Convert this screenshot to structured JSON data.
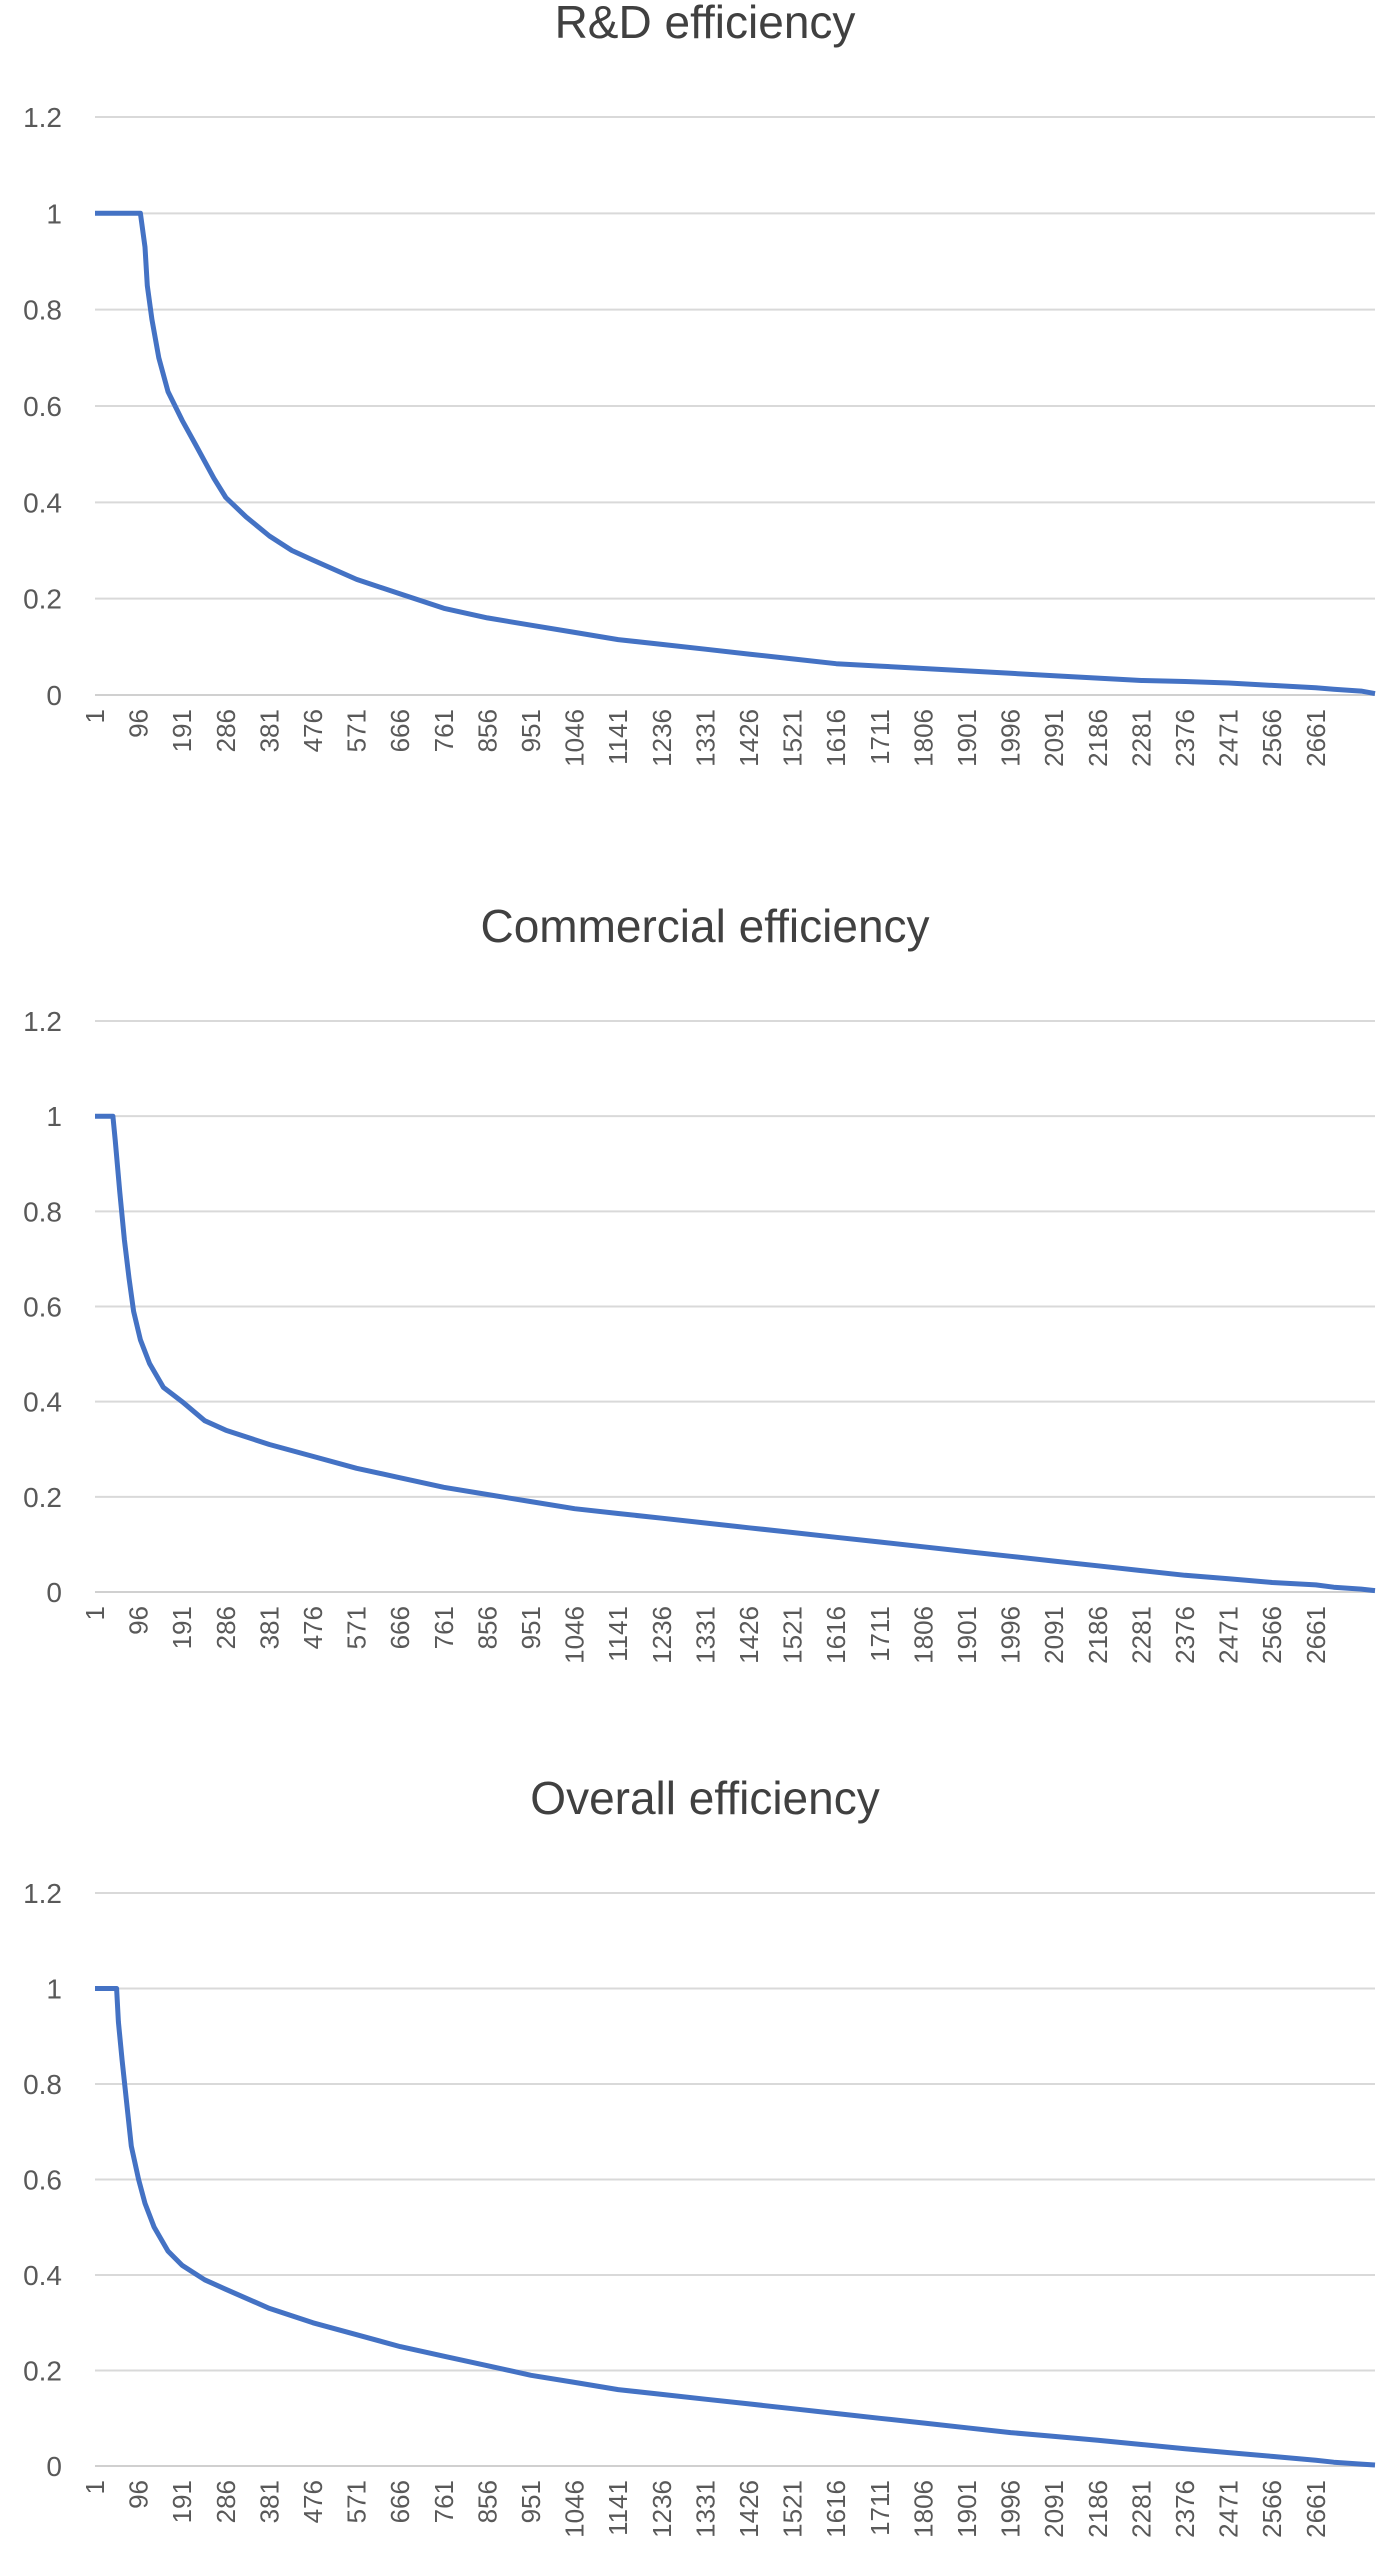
{
  "colors": {
    "series": "#4472C4",
    "grid": "#d9d9d9",
    "text": "#404040"
  },
  "chart_data": [
    {
      "type": "line",
      "title": "R&D efficiency",
      "xlabel": "",
      "ylabel": "",
      "ylim": [
        0,
        1.2
      ],
      "yticks": [
        "0",
        "0.2",
        "0.4",
        "0.6",
        "0.8",
        "1",
        "1.2"
      ],
      "xticks": [
        "1",
        "96",
        "191",
        "286",
        "381",
        "476",
        "571",
        "666",
        "761",
        "856",
        "951",
        "1046",
        "1141",
        "1236",
        "1331",
        "1426",
        "1521",
        "1616",
        "1711",
        "1806",
        "1901",
        "1996",
        "2091",
        "2186",
        "2281",
        "2376",
        "2471",
        "2566",
        "2661"
      ],
      "xlim": [
        1,
        2790
      ],
      "grid": true,
      "legend": "none",
      "series": [
        {
          "x": [
            1,
            60,
            100,
            110,
            115,
            125,
            140,
            160,
            191,
            220,
            260,
            286,
            330,
            381,
            430,
            476,
            571,
            666,
            761,
            856,
            951,
            1046,
            1141,
            1236,
            1331,
            1426,
            1521,
            1616,
            1711,
            1806,
            1901,
            1996,
            2091,
            2186,
            2281,
            2376,
            2471,
            2566,
            2661,
            2700,
            2760,
            2790
          ],
          "y": [
            1.0,
            1.0,
            1.0,
            0.93,
            0.85,
            0.78,
            0.7,
            0.63,
            0.57,
            0.52,
            0.45,
            0.41,
            0.37,
            0.33,
            0.3,
            0.28,
            0.24,
            0.21,
            0.18,
            0.16,
            0.145,
            0.13,
            0.115,
            0.105,
            0.095,
            0.085,
            0.075,
            0.065,
            0.06,
            0.055,
            0.05,
            0.045,
            0.04,
            0.035,
            0.03,
            0.028,
            0.025,
            0.02,
            0.015,
            0.012,
            0.008,
            0.003
          ]
        }
      ]
    },
    {
      "type": "line",
      "title": "Commercial efficiency",
      "xlabel": "",
      "ylabel": "",
      "ylim": [
        0,
        1.2
      ],
      "yticks": [
        "0",
        "0.2",
        "0.4",
        "0.6",
        "0.8",
        "1",
        "1.2"
      ],
      "xticks": [
        "1",
        "96",
        "191",
        "286",
        "381",
        "476",
        "571",
        "666",
        "761",
        "856",
        "951",
        "1046",
        "1141",
        "1236",
        "1331",
        "1426",
        "1521",
        "1616",
        "1711",
        "1806",
        "1901",
        "1996",
        "2091",
        "2186",
        "2281",
        "2376",
        "2471",
        "2566",
        "2661"
      ],
      "xlim": [
        1,
        2790
      ],
      "grid": true,
      "legend": "none",
      "series": [
        {
          "x": [
            1,
            30,
            40,
            45,
            55,
            65,
            75,
            85,
            100,
            120,
            150,
            191,
            240,
            286,
            381,
            476,
            571,
            666,
            761,
            856,
            951,
            1046,
            1141,
            1236,
            1331,
            1426,
            1521,
            1616,
            1711,
            1806,
            1901,
            1996,
            2091,
            2186,
            2281,
            2376,
            2471,
            2566,
            2661,
            2700,
            2760,
            2790
          ],
          "y": [
            1.0,
            1.0,
            1.0,
            0.95,
            0.84,
            0.74,
            0.66,
            0.59,
            0.53,
            0.48,
            0.43,
            0.4,
            0.36,
            0.34,
            0.31,
            0.285,
            0.26,
            0.24,
            0.22,
            0.205,
            0.19,
            0.175,
            0.165,
            0.155,
            0.145,
            0.135,
            0.125,
            0.115,
            0.105,
            0.095,
            0.085,
            0.075,
            0.065,
            0.055,
            0.045,
            0.035,
            0.028,
            0.02,
            0.015,
            0.01,
            0.006,
            0.003
          ]
        }
      ]
    },
    {
      "type": "line",
      "title": "Overall efficiency",
      "xlabel": "",
      "ylabel": "",
      "ylim": [
        0,
        1.2
      ],
      "yticks": [
        "0",
        "0.2",
        "0.4",
        "0.6",
        "0.8",
        "1",
        "1.2"
      ],
      "xticks": [
        "1",
        "96",
        "191",
        "286",
        "381",
        "476",
        "571",
        "666",
        "761",
        "856",
        "951",
        "1046",
        "1141",
        "1236",
        "1331",
        "1426",
        "1521",
        "1616",
        "1711",
        "1806",
        "1901",
        "1996",
        "2091",
        "2186",
        "2281",
        "2376",
        "2471",
        "2566",
        "2661"
      ],
      "xlim": [
        1,
        2790
      ],
      "grid": true,
      "legend": "none",
      "series": [
        {
          "x": [
            1,
            40,
            48,
            52,
            60,
            70,
            80,
            96,
            110,
            130,
            160,
            191,
            240,
            286,
            381,
            476,
            571,
            666,
            761,
            856,
            951,
            1046,
            1141,
            1236,
            1331,
            1426,
            1521,
            1616,
            1711,
            1806,
            1901,
            1996,
            2091,
            2186,
            2281,
            2376,
            2471,
            2566,
            2661,
            2700,
            2760,
            2790
          ],
          "y": [
            1.0,
            1.0,
            1.0,
            0.93,
            0.85,
            0.76,
            0.67,
            0.6,
            0.55,
            0.5,
            0.45,
            0.42,
            0.39,
            0.37,
            0.33,
            0.3,
            0.275,
            0.25,
            0.23,
            0.21,
            0.19,
            0.175,
            0.16,
            0.15,
            0.14,
            0.13,
            0.12,
            0.11,
            0.1,
            0.09,
            0.08,
            0.07,
            0.062,
            0.054,
            0.045,
            0.036,
            0.028,
            0.02,
            0.012,
            0.008,
            0.004,
            0.002
          ]
        }
      ]
    }
  ]
}
